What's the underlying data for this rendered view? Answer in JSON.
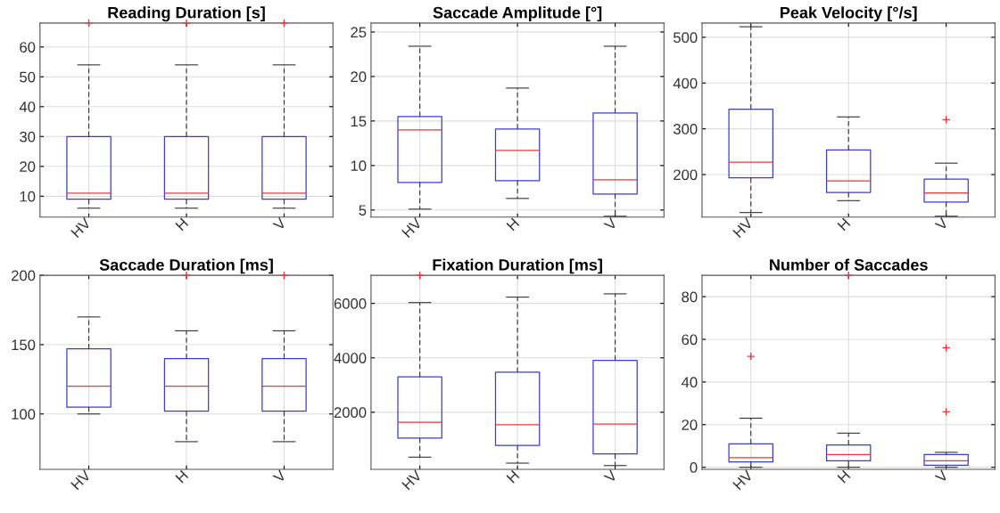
{
  "chart_data": [
    {
      "type": "box",
      "title": "Reading Duration [s]",
      "categories": [
        "HV",
        "H",
        "V"
      ],
      "ylim": [
        3,
        68
      ],
      "yticks": [
        10,
        20,
        30,
        40,
        50,
        60
      ],
      "grid": true,
      "boxes": [
        {
          "low": 6,
          "q1": 9,
          "median": 11,
          "q3": 30,
          "high": 54,
          "outliers": [
            68
          ]
        },
        {
          "low": 6,
          "q1": 9,
          "median": 11,
          "q3": 30,
          "high": 54,
          "outliers": [
            68
          ]
        },
        {
          "low": 6,
          "q1": 9,
          "median": 11,
          "q3": 30,
          "high": 54,
          "outliers": [
            68
          ]
        }
      ]
    },
    {
      "type": "box",
      "title": "Saccade Amplitude [°]",
      "categories": [
        "HV",
        "H",
        "V"
      ],
      "ylim": [
        4.2,
        26
      ],
      "yticks": [
        5,
        10,
        15,
        20,
        25
      ],
      "grid": true,
      "boxes": [
        {
          "low": 5.1,
          "q1": 8.1,
          "median": 14.0,
          "q3": 15.5,
          "high": 23.4
        },
        {
          "low": 6.3,
          "q1": 8.3,
          "median": 11.7,
          "q3": 14.1,
          "high": 18.7
        },
        {
          "low": 4.3,
          "q1": 6.8,
          "median": 8.4,
          "q3": 15.9,
          "high": 23.4
        }
      ]
    },
    {
      "type": "box",
      "title": "Peak Velocity [°/s]",
      "categories": [
        "HV",
        "H",
        "V"
      ],
      "ylim": [
        107,
        531
      ],
      "yticks": [
        200,
        300,
        400,
        500
      ],
      "grid": true,
      "boxes": [
        {
          "low": 117,
          "q1": 193,
          "median": 227,
          "q3": 343,
          "high": 523
        },
        {
          "low": 143,
          "q1": 161,
          "median": 186,
          "q3": 254,
          "high": 326
        },
        {
          "low": 109,
          "q1": 140,
          "median": 160,
          "q3": 190,
          "high": 225,
          "outliers": [
            320
          ]
        }
      ]
    },
    {
      "type": "box",
      "title": "Saccade Duration [ms]",
      "categories": [
        "HV",
        "H",
        "V"
      ],
      "ylim": [
        60,
        200
      ],
      "yticks": [
        100,
        150,
        200
      ],
      "grid": true,
      "boxes": [
        {
          "low": 100,
          "q1": 105,
          "median": 120,
          "q3": 147,
          "high": 170
        },
        {
          "low": 80,
          "q1": 102,
          "median": 120,
          "q3": 140,
          "high": 160,
          "outliers": [
            200
          ]
        },
        {
          "low": 80,
          "q1": 102,
          "median": 120,
          "q3": 140,
          "high": 160,
          "outliers": [
            200
          ]
        }
      ]
    },
    {
      "type": "box",
      "title": "Fixation Duration [ms]",
      "categories": [
        "HV",
        "H",
        "V"
      ],
      "ylim": [
        -100,
        7030
      ],
      "yticks": [
        2000,
        4000,
        6000
      ],
      "grid": true,
      "boxes": [
        {
          "low": 350,
          "q1": 1050,
          "median": 1630,
          "q3": 3300,
          "high": 6030,
          "outliers": [
            7030
          ]
        },
        {
          "low": 130,
          "q1": 780,
          "median": 1540,
          "q3": 3470,
          "high": 6230
        },
        {
          "low": 40,
          "q1": 470,
          "median": 1570,
          "q3": 3910,
          "high": 6350
        }
      ]
    },
    {
      "type": "box",
      "title": "Number of Saccades",
      "categories": [
        "HV",
        "H",
        "V"
      ],
      "ylim": [
        -1,
        90
      ],
      "yticks": [
        0,
        20,
        40,
        60,
        80
      ],
      "grid": true,
      "boxes": [
        {
          "low": 0,
          "q1": 2.5,
          "median": 4.5,
          "q3": 11,
          "high": 23,
          "outliers": [
            52
          ]
        },
        {
          "low": 0,
          "q1": 3,
          "median": 6,
          "q3": 10.5,
          "high": 16,
          "outliers": [
            90
          ]
        },
        {
          "low": 0,
          "q1": 1,
          "median": 3,
          "q3": 6,
          "high": 7,
          "outliers": [
            56,
            26
          ]
        }
      ]
    }
  ]
}
